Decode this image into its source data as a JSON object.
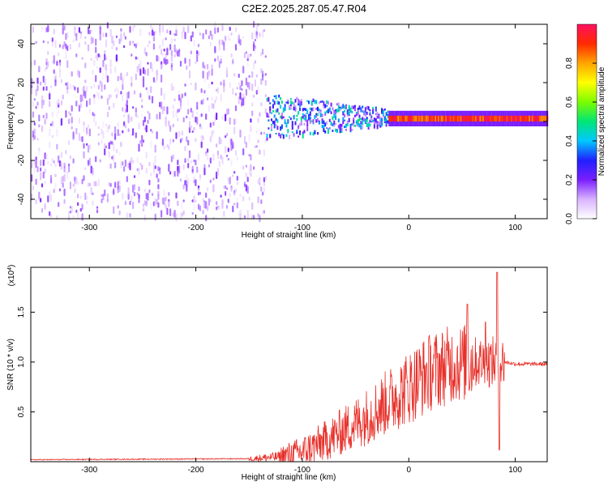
{
  "figure": {
    "title": "C2E2.2025.287.05.47.R04"
  },
  "chart_data": [
    {
      "type": "heatmap",
      "name": "spectrogram",
      "xlabel": "Height of straight line (km)",
      "ylabel": "Frequency (Hz)",
      "xlim": [
        -355,
        130
      ],
      "ylim": [
        -50,
        50
      ],
      "xticks": [
        -300,
        -200,
        -100,
        0,
        100
      ],
      "xtick_labels": [
        "-300",
        "-200",
        "-100",
        "0",
        "100"
      ],
      "yticks": [
        -40,
        -20,
        0,
        20,
        40
      ],
      "ytick_labels": [
        "-40",
        "-20",
        "0",
        "20",
        "40"
      ],
      "colorbar": {
        "label": "Normalized spectral amplitude",
        "range": [
          0,
          1
        ],
        "ticks": [
          0.0,
          0.2,
          0.4,
          0.6,
          0.8
        ],
        "tick_labels": [
          "0.0",
          "0.2",
          "0.4",
          "0.6",
          "0.8"
        ],
        "colors": [
          "#ffffff",
          "#d9b3ff",
          "#7a1fff",
          "#2020ff",
          "#00c8ff",
          "#00e676",
          "#7cfc00",
          "#ffff00",
          "#ffa500",
          "#ff2a00",
          "#ff1060"
        ]
      },
      "regions": [
        {
          "x_range": [
            -355,
            -135
          ],
          "freq_range": [
            -50,
            50
          ],
          "amplitude_range": [
            0.0,
            0.18
          ],
          "description": "broadband noise"
        },
        {
          "x_range": [
            -135,
            -20
          ],
          "freq_center": 2,
          "freq_halfwidth": [
            12,
            4
          ],
          "amplitude_range": [
            0.1,
            0.5
          ]
        },
        {
          "x_range": [
            -20,
            130
          ],
          "freq_center": 1.5,
          "freq_halfwidth": 2.5,
          "amplitude_range": [
            0.8,
            1.0
          ]
        }
      ]
    },
    {
      "type": "line",
      "name": "snr",
      "xlabel": "Height of straight line (km)",
      "ylabel": "SNR (10 * v/v)",
      "y_multiplier_label": "(x10",
      "y_multiplier_exp": "4",
      "xlim": [
        -355,
        130
      ],
      "ylim": [
        0,
        1.95
      ],
      "xticks": [
        -300,
        -200,
        -100,
        0,
        100
      ],
      "xtick_labels": [
        "-300",
        "-200",
        "-100",
        "0",
        "100"
      ],
      "yticks": [
        0.5,
        1.0,
        1.5
      ],
      "ytick_labels": [
        "0.5",
        "1.0",
        "1.5"
      ],
      "color": "#e8302a",
      "series_profile": {
        "x": [
          -355,
          -150,
          -120,
          -100,
          -80,
          -60,
          -40,
          -20,
          0,
          20,
          40,
          60,
          80,
          90,
          100,
          130
        ],
        "y": [
          0.02,
          0.03,
          0.05,
          0.1,
          0.2,
          0.32,
          0.45,
          0.6,
          0.75,
          0.9,
          0.98,
          1.0,
          1.0,
          1.0,
          0.98,
          0.98
        ]
      },
      "spikes": [
        {
          "x": 55,
          "y": 1.58
        },
        {
          "x": 72,
          "y": 1.4
        },
        {
          "x": 83,
          "y": 1.9
        },
        {
          "x": 85,
          "y": 0.12
        }
      ]
    }
  ]
}
